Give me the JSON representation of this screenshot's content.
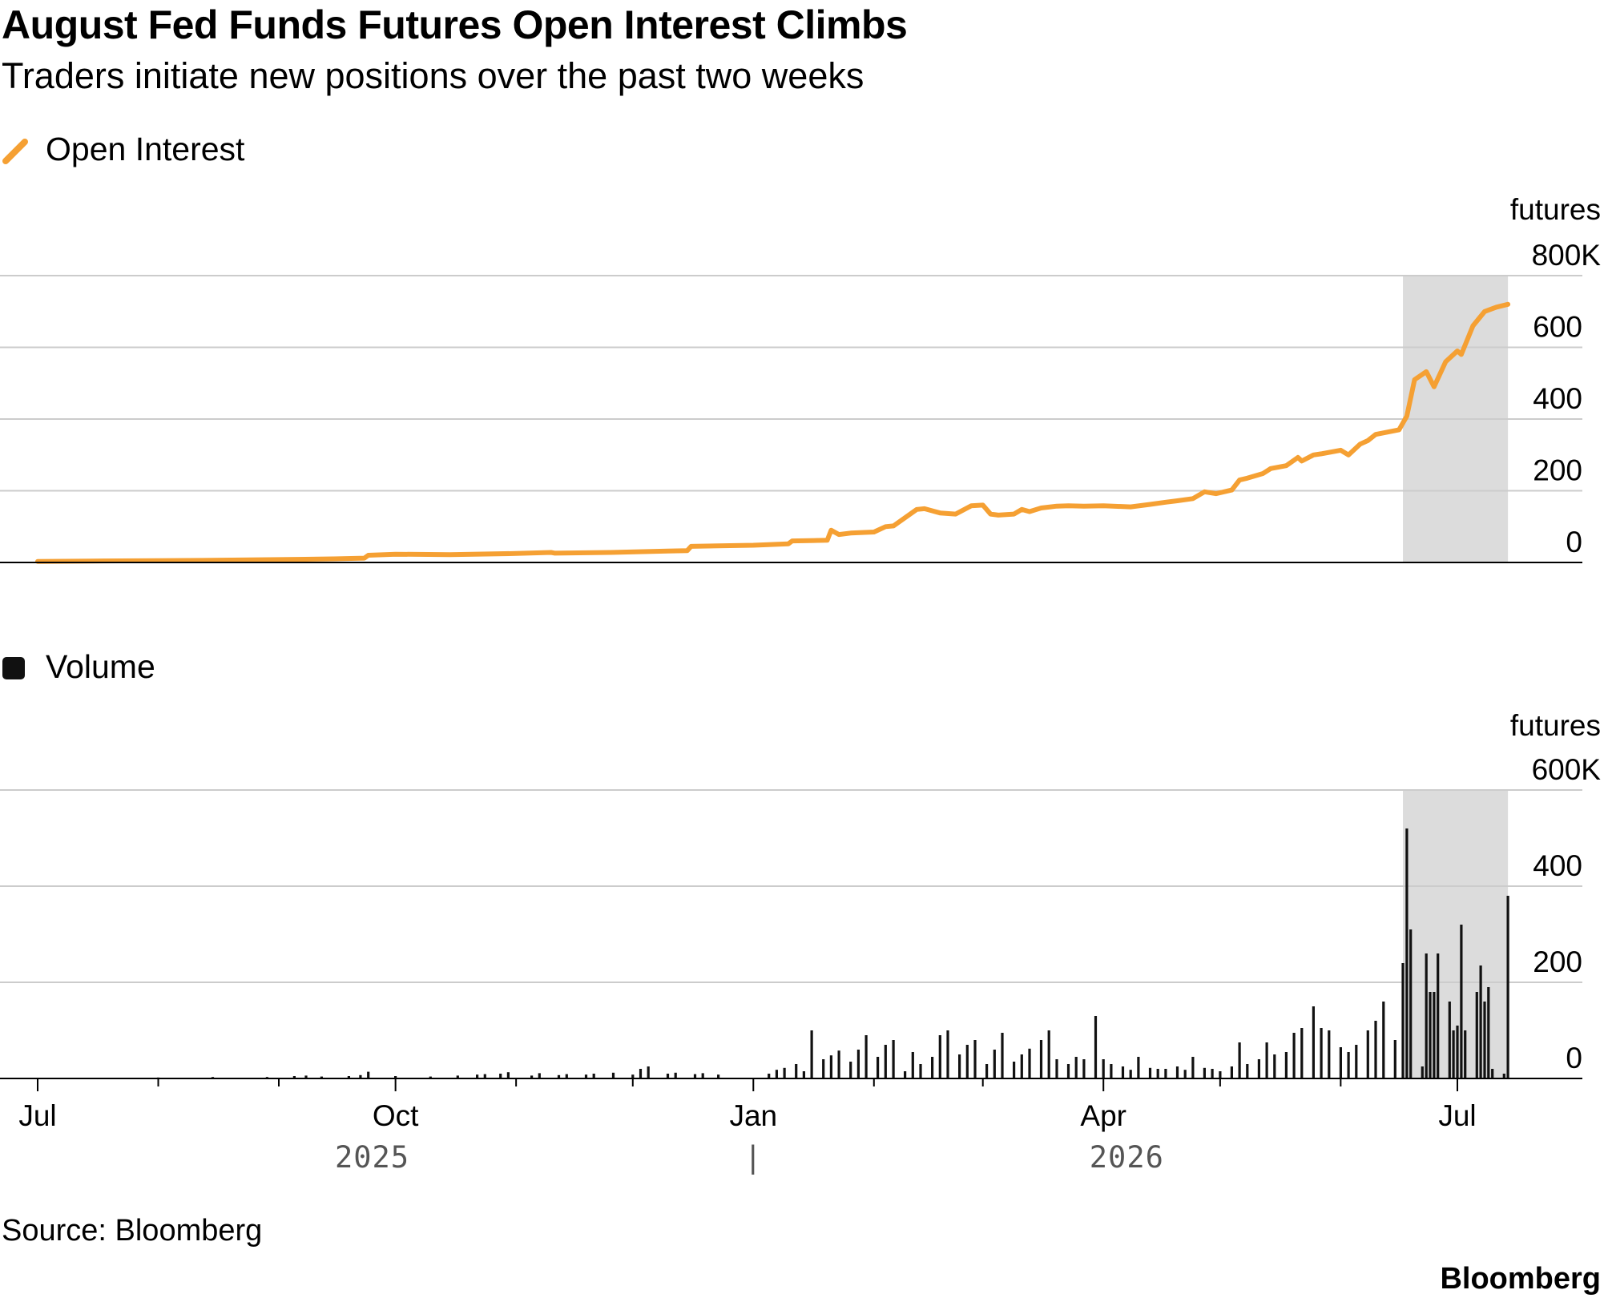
{
  "header": {
    "title": "August Fed Funds Futures Open Interest Climbs",
    "subtitle": "Traders initiate new positions over the past two weeks"
  },
  "footer": {
    "source": "Source: Bloomberg",
    "brand": "Bloomberg"
  },
  "colors": {
    "open_interest": "#f5a033",
    "volume": "#111111",
    "highlight": "#dcdcdc",
    "grid": "#cccccc"
  },
  "x_axis": {
    "start": "2025-07-01",
    "end": "2026-07-20",
    "ticks": [
      {
        "date": "2025-07-01",
        "label": "Jul",
        "major": true
      },
      {
        "date": "2025-08-01",
        "label": "",
        "major": false
      },
      {
        "date": "2025-09-01",
        "label": "",
        "major": false
      },
      {
        "date": "2025-10-01",
        "label": "Oct",
        "major": true
      },
      {
        "date": "2025-11-01",
        "label": "",
        "major": false
      },
      {
        "date": "2025-12-01",
        "label": "",
        "major": false
      },
      {
        "date": "2026-01-01",
        "label": "Jan",
        "major": true
      },
      {
        "date": "2026-02-01",
        "label": "",
        "major": false
      },
      {
        "date": "2026-03-01",
        "label": "",
        "major": false
      },
      {
        "date": "2026-04-01",
        "label": "Apr",
        "major": true
      },
      {
        "date": "2026-05-01",
        "label": "",
        "major": false
      },
      {
        "date": "2026-06-01",
        "label": "",
        "major": false
      },
      {
        "date": "2026-07-01",
        "label": "Jul",
        "major": true
      }
    ],
    "years": [
      {
        "label": "2025",
        "center_date": "2025-09-25"
      },
      {
        "label": "2026",
        "center_date": "2026-04-07"
      }
    ],
    "year_divider_date": "2026-01-01",
    "year_divider_label": "|"
  },
  "highlight": {
    "start": "2026-06-17",
    "end": "2026-07-14"
  },
  "chart_data": [
    {
      "type": "line",
      "title": "August Fed Funds Futures Open Interest Climbs",
      "legend": "Open Interest",
      "unit": "futures",
      "ylim": [
        0,
        800
      ],
      "yticks": [
        {
          "value": 0,
          "label": "0"
        },
        {
          "value": 200,
          "label": "200"
        },
        {
          "value": 400,
          "label": "400"
        },
        {
          "value": 600,
          "label": "600"
        },
        {
          "value": 800,
          "label": "800K"
        }
      ],
      "series": [
        {
          "name": "Open Interest",
          "x": [
            "2025-07-01",
            "2025-07-15",
            "2025-08-01",
            "2025-08-15",
            "2025-09-01",
            "2025-09-15",
            "2025-09-23",
            "2025-09-24",
            "2025-10-01",
            "2025-10-15",
            "2025-11-01",
            "2025-11-10",
            "2025-11-11",
            "2025-11-25",
            "2025-12-10",
            "2025-12-15",
            "2025-12-16",
            "2026-01-01",
            "2026-01-10",
            "2026-01-11",
            "2026-01-20",
            "2026-01-21",
            "2026-01-23",
            "2026-01-26",
            "2026-02-01",
            "2026-02-04",
            "2026-02-06",
            "2026-02-12",
            "2026-02-14",
            "2026-02-18",
            "2026-02-22",
            "2026-02-26",
            "2026-03-01",
            "2026-03-03",
            "2026-03-05",
            "2026-03-09",
            "2026-03-11",
            "2026-03-13",
            "2026-03-16",
            "2026-03-20",
            "2026-03-23",
            "2026-03-27",
            "2026-04-01",
            "2026-04-08",
            "2026-04-13",
            "2026-04-17",
            "2026-04-20",
            "2026-04-24",
            "2026-04-27",
            "2026-04-30",
            "2026-05-04",
            "2026-05-06",
            "2026-05-08",
            "2026-05-12",
            "2026-05-14",
            "2026-05-18",
            "2026-05-21",
            "2026-05-22",
            "2026-05-25",
            "2026-05-27",
            "2026-06-01",
            "2026-06-03",
            "2026-06-06",
            "2026-06-08",
            "2026-06-10",
            "2026-06-16",
            "2026-06-18",
            "2026-06-20",
            "2026-06-23",
            "2026-06-25",
            "2026-06-28",
            "2026-07-01",
            "2026-07-02",
            "2026-07-05",
            "2026-07-08",
            "2026-07-11",
            "2026-07-14"
          ],
          "values": [
            3,
            4,
            5,
            6,
            8,
            10,
            12,
            20,
            23,
            22,
            25,
            28,
            26,
            28,
            32,
            33,
            45,
            48,
            52,
            60,
            62,
            90,
            78,
            82,
            85,
            100,
            102,
            148,
            150,
            138,
            135,
            158,
            160,
            135,
            132,
            135,
            148,
            142,
            152,
            157,
            158,
            157,
            158,
            155,
            162,
            168,
            172,
            178,
            197,
            192,
            202,
            230,
            235,
            248,
            262,
            270,
            293,
            283,
            300,
            303,
            313,
            300,
            330,
            340,
            357,
            370,
            408,
            510,
            532,
            490,
            560,
            590,
            580,
            660,
            700,
            712,
            720
          ]
        }
      ]
    },
    {
      "type": "bar",
      "legend": "Volume",
      "unit": "futures",
      "ylim": [
        0,
        600
      ],
      "yticks": [
        {
          "value": 0,
          "label": "0"
        },
        {
          "value": 200,
          "label": "200"
        },
        {
          "value": 400,
          "label": "400"
        },
        {
          "value": 600,
          "label": "600K"
        }
      ],
      "series": [
        {
          "name": "Volume",
          "x": [
            "2025-08-01",
            "2025-08-15",
            "2025-08-29",
            "2025-09-05",
            "2025-09-08",
            "2025-09-12",
            "2025-09-19",
            "2025-09-22",
            "2025-09-24",
            "2025-10-01",
            "2025-10-10",
            "2025-10-17",
            "2025-10-22",
            "2025-10-24",
            "2025-10-28",
            "2025-10-30",
            "2025-11-05",
            "2025-11-07",
            "2025-11-12",
            "2025-11-14",
            "2025-11-19",
            "2025-11-21",
            "2025-11-26",
            "2025-12-01",
            "2025-12-03",
            "2025-12-05",
            "2025-12-10",
            "2025-12-12",
            "2025-12-17",
            "2025-12-19",
            "2025-12-23",
            "2026-01-05",
            "2026-01-07",
            "2026-01-09",
            "2026-01-12",
            "2026-01-14",
            "2026-01-16",
            "2026-01-19",
            "2026-01-21",
            "2026-01-23",
            "2026-01-26",
            "2026-01-28",
            "2026-01-30",
            "2026-02-02",
            "2026-02-04",
            "2026-02-06",
            "2026-02-09",
            "2026-02-11",
            "2026-02-13",
            "2026-02-16",
            "2026-02-18",
            "2026-02-20",
            "2026-02-23",
            "2026-02-25",
            "2026-02-27",
            "2026-03-02",
            "2026-03-04",
            "2026-03-06",
            "2026-03-09",
            "2026-03-11",
            "2026-03-13",
            "2026-03-16",
            "2026-03-18",
            "2026-03-20",
            "2026-03-23",
            "2026-03-25",
            "2026-03-27",
            "2026-03-30",
            "2026-04-01",
            "2026-04-03",
            "2026-04-06",
            "2026-04-08",
            "2026-04-10",
            "2026-04-13",
            "2026-04-15",
            "2026-04-17",
            "2026-04-20",
            "2026-04-22",
            "2026-04-24",
            "2026-04-27",
            "2026-04-29",
            "2026-05-01",
            "2026-05-04",
            "2026-05-06",
            "2026-05-08",
            "2026-05-11",
            "2026-05-13",
            "2026-05-15",
            "2026-05-18",
            "2026-05-20",
            "2026-05-22",
            "2026-05-25",
            "2026-05-27",
            "2026-05-29",
            "2026-06-01",
            "2026-06-03",
            "2026-06-05",
            "2026-06-08",
            "2026-06-10",
            "2026-06-12",
            "2026-06-15",
            "2026-06-17",
            "2026-06-18",
            "2026-06-19",
            "2026-06-22",
            "2026-06-23",
            "2026-06-24",
            "2026-06-25",
            "2026-06-26",
            "2026-06-29",
            "2026-06-30",
            "2026-07-01",
            "2026-07-02",
            "2026-07-03",
            "2026-07-06",
            "2026-07-07",
            "2026-07-08",
            "2026-07-09",
            "2026-07-10",
            "2026-07-13",
            "2026-07-14"
          ],
          "values": [
            2,
            3,
            3,
            5,
            6,
            4,
            5,
            7,
            14,
            5,
            4,
            6,
            8,
            9,
            10,
            13,
            6,
            11,
            7,
            9,
            8,
            10,
            12,
            8,
            20,
            25,
            10,
            12,
            9,
            11,
            8,
            10,
            18,
            22,
            30,
            15,
            100,
            40,
            48,
            58,
            35,
            60,
            90,
            45,
            70,
            80,
            15,
            55,
            30,
            45,
            90,
            100,
            50,
            70,
            80,
            30,
            60,
            95,
            35,
            50,
            62,
            80,
            100,
            40,
            30,
            45,
            40,
            130,
            40,
            30,
            25,
            18,
            45,
            22,
            20,
            20,
            25,
            18,
            45,
            22,
            20,
            15,
            25,
            75,
            30,
            40,
            75,
            50,
            55,
            95,
            105,
            150,
            105,
            100,
            65,
            55,
            70,
            100,
            120,
            160,
            80,
            240,
            520,
            310,
            25,
            260,
            180,
            180,
            260,
            160,
            100,
            110,
            320,
            100,
            180,
            235,
            160,
            190,
            20,
            10,
            380
          ]
        }
      ]
    }
  ]
}
